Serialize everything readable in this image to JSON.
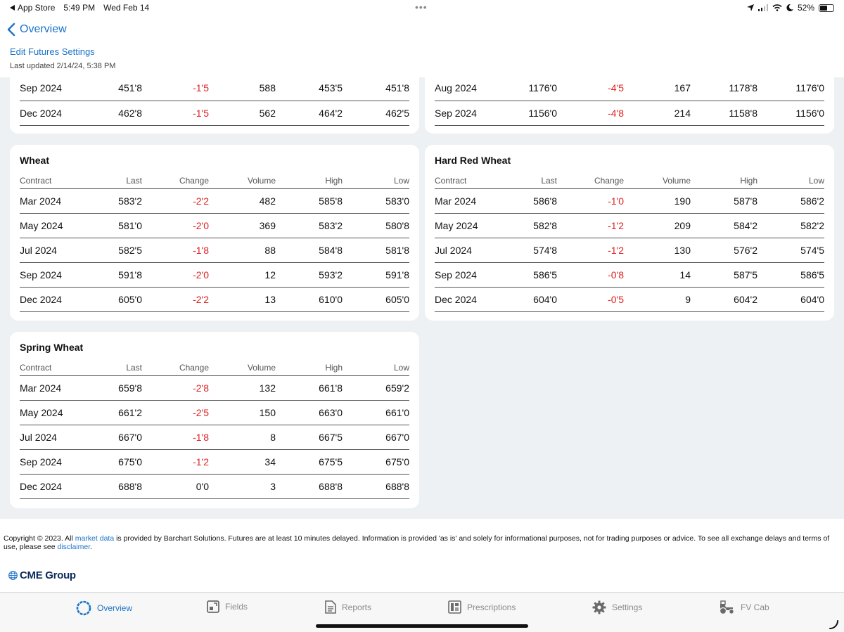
{
  "status_bar": {
    "back_app": "App Store",
    "time": "5:49 PM",
    "date": "Wed Feb 14",
    "battery": "52%",
    "battery_level": 0.52
  },
  "header": {
    "back_label": "Overview",
    "edit_link": "Edit Futures Settings",
    "last_updated": "Last updated 2/14/24, 5:38 PM"
  },
  "columns": [
    "Contract",
    "Last",
    "Change",
    "Volume",
    "High",
    "Low"
  ],
  "partial_left": {
    "rows": [
      {
        "contract": "Sep 2024",
        "last": "451'8",
        "change": "-1'5",
        "volume": "588",
        "high": "453'5",
        "low": "451'8"
      },
      {
        "contract": "Dec 2024",
        "last": "462'8",
        "change": "-1'5",
        "volume": "562",
        "high": "464'2",
        "low": "462'5"
      }
    ]
  },
  "partial_right": {
    "rows": [
      {
        "contract": "Aug 2024",
        "last": "1176'0",
        "change": "-4'5",
        "volume": "167",
        "high": "1178'8",
        "low": "1176'0"
      },
      {
        "contract": "Sep 2024",
        "last": "1156'0",
        "change": "-4'8",
        "volume": "214",
        "high": "1158'8",
        "low": "1156'0"
      }
    ]
  },
  "wheat": {
    "title": "Wheat",
    "rows": [
      {
        "contract": "Mar 2024",
        "last": "583'2",
        "change": "-2'2",
        "volume": "482",
        "high": "585'8",
        "low": "583'0"
      },
      {
        "contract": "May 2024",
        "last": "581'0",
        "change": "-2'0",
        "volume": "369",
        "high": "583'2",
        "low": "580'8"
      },
      {
        "contract": "Jul 2024",
        "last": "582'5",
        "change": "-1'8",
        "volume": "88",
        "high": "584'8",
        "low": "581'8"
      },
      {
        "contract": "Sep 2024",
        "last": "591'8",
        "change": "-2'0",
        "volume": "12",
        "high": "593'2",
        "low": "591'8"
      },
      {
        "contract": "Dec 2024",
        "last": "605'0",
        "change": "-2'2",
        "volume": "13",
        "high": "610'0",
        "low": "605'0"
      }
    ]
  },
  "hard_red_wheat": {
    "title": "Hard Red Wheat",
    "rows": [
      {
        "contract": "Mar 2024",
        "last": "586'8",
        "change": "-1'0",
        "volume": "190",
        "high": "587'8",
        "low": "586'2"
      },
      {
        "contract": "May 2024",
        "last": "582'8",
        "change": "-1'2",
        "volume": "209",
        "high": "584'2",
        "low": "582'2"
      },
      {
        "contract": "Jul 2024",
        "last": "574'8",
        "change": "-1'2",
        "volume": "130",
        "high": "576'2",
        "low": "574'5"
      },
      {
        "contract": "Sep 2024",
        "last": "586'5",
        "change": "-0'8",
        "volume": "14",
        "high": "587'5",
        "low": "586'5"
      },
      {
        "contract": "Dec 2024",
        "last": "604'0",
        "change": "-0'5",
        "volume": "9",
        "high": "604'2",
        "low": "604'0"
      }
    ]
  },
  "spring_wheat": {
    "title": "Spring Wheat",
    "rows": [
      {
        "contract": "Mar 2024",
        "last": "659'8",
        "change": "-2'8",
        "volume": "132",
        "high": "661'8",
        "low": "659'2"
      },
      {
        "contract": "May 2024",
        "last": "661'2",
        "change": "-2'5",
        "volume": "150",
        "high": "663'0",
        "low": "661'0"
      },
      {
        "contract": "Jul 2024",
        "last": "667'0",
        "change": "-1'8",
        "volume": "8",
        "high": "667'5",
        "low": "667'0"
      },
      {
        "contract": "Sep 2024",
        "last": "675'0",
        "change": "-1'2",
        "volume": "34",
        "high": "675'5",
        "low": "675'0"
      },
      {
        "contract": "Dec 2024",
        "last": "688'8",
        "change": "0'0",
        "volume": "3",
        "high": "688'8",
        "low": "688'8"
      }
    ]
  },
  "footer": {
    "copyright_pre": "Copyright © 2023. All ",
    "market_data_link": "market data",
    "copyright_mid": " is provided by Barchart Solutions. Futures are at least 10 minutes delayed. Information is provided 'as is' and solely for informational purposes, not for trading purposes or advice. To see all exchange delays and terms of use, please see ",
    "disclaimer_link": "disclaimer",
    "copyright_end": ".",
    "cme_logo": "CME Group"
  },
  "tabs": [
    {
      "label": "Overview",
      "icon": "overview-ring-icon",
      "active": true
    },
    {
      "label": "Fields",
      "icon": "fields-icon",
      "active": false
    },
    {
      "label": "Reports",
      "icon": "reports-icon",
      "active": false
    },
    {
      "label": "Prescriptions",
      "icon": "prescriptions-icon",
      "active": false
    },
    {
      "label": "Settings",
      "icon": "gear-icon",
      "active": false
    },
    {
      "label": "FV Cab",
      "icon": "tractor-icon",
      "active": false
    }
  ],
  "colors": {
    "accent": "#1a73c9",
    "negative": "#e02020",
    "background": "#eef1f3"
  }
}
